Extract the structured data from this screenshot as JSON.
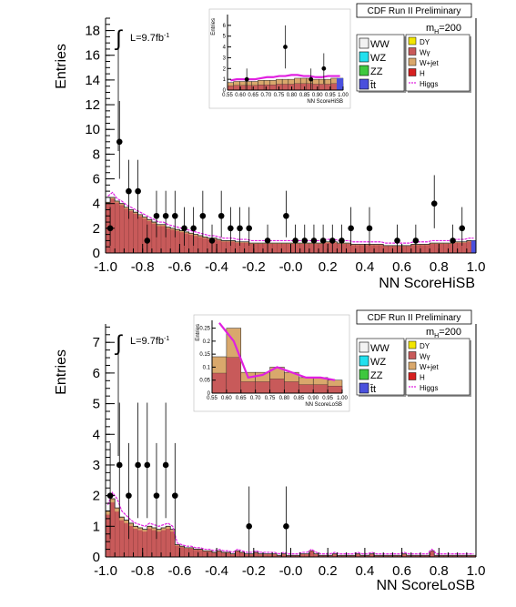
{
  "chart_data": [
    {
      "type": "bar",
      "id": "hisb",
      "banner": "CDF Run II Preliminary",
      "lumi_label": "L=9.7fb",
      "lumi_sup": "-1",
      "mass_label": "m",
      "mass_sub": "H",
      "mass_value": "=200",
      "xlabel": "NN ScoreHiSB",
      "ylabel": "Entries",
      "xlim": [
        -1.0,
        1.0
      ],
      "ylim": [
        0,
        19
      ],
      "xticks": [
        "-1.0",
        "-0.8",
        "-0.6",
        "-0.4",
        "-0.2",
        "-0.0",
        "0.2",
        "0.4",
        "0.6",
        "0.8",
        "1.0"
      ],
      "yticks": [
        "0",
        "2",
        "4",
        "6",
        "8",
        "10",
        "12",
        "14",
        "16",
        "18"
      ],
      "legend_left": [
        "WW",
        "WZ",
        "ZZ",
        "t̄t"
      ],
      "legend_right": [
        "DY",
        "Wγ",
        "W+jet",
        "H",
        "Higgs"
      ],
      "colors": {
        "ww": "#f2f2f2",
        "wz": "#22e0ee",
        "zz": "#3ec83e",
        "tt": "#4a50dd",
        "dy": "#f2e600",
        "wg": "#c85a5a",
        "wjet": "#d9a86c",
        "h": "#d62020",
        "higgs": "#e020e0"
      },
      "bkg_bins": [
        4.1,
        4.5,
        4.2,
        4.0,
        3.7,
        3.5,
        3.3,
        3.1,
        2.9,
        2.7,
        2.5,
        2.3,
        2.3,
        2.1,
        2.0,
        1.9,
        1.8,
        1.7,
        1.6,
        1.5,
        1.4,
        1.3,
        1.2,
        1.2,
        1.1,
        1.0,
        1.0,
        1.0,
        0.9,
        0.9,
        0.9,
        0.8,
        0.8,
        0.8,
        0.8,
        0.8,
        0.8,
        0.8,
        0.8,
        0.8,
        0.8,
        0.8,
        0.8,
        0.8,
        0.8,
        0.8,
        0.8,
        0.9,
        0.9,
        0.9,
        0.8,
        0.8,
        0.8,
        0.7,
        0.7,
        0.7,
        0.7,
        0.7,
        0.7,
        0.7,
        0.6,
        0.6,
        0.6,
        0.6,
        0.6,
        0.6,
        0.7,
        0.7,
        0.7,
        0.7,
        0.8,
        0.8,
        0.8,
        0.8,
        0.8,
        0.9,
        0.9,
        0.9,
        1.0,
        1.0
      ],
      "signal_curve": [
        4.6,
        4.9,
        4.4,
        4.2,
        3.9,
        3.7,
        3.5,
        3.3,
        3.1,
        2.9,
        2.7,
        2.5,
        2.5,
        2.3,
        2.2,
        2.1,
        2.0,
        1.9,
        1.8,
        1.7,
        1.6,
        1.5,
        1.4,
        1.4,
        1.3,
        1.2,
        1.2,
        1.2,
        1.1,
        1.1,
        1.1,
        1.0,
        1.0,
        1.0,
        1.0,
        1.0,
        1.0,
        1.0,
        1.0,
        1.0,
        1.0,
        1.0,
        1.0,
        1.0,
        1.0,
        1.0,
        1.0,
        1.1,
        1.1,
        1.1,
        1.0,
        1.0,
        1.0,
        0.9,
        0.9,
        0.9,
        0.9,
        0.9,
        0.9,
        0.9,
        0.8,
        0.8,
        0.8,
        0.8,
        0.8,
        0.8,
        0.9,
        0.9,
        0.9,
        0.9,
        1.0,
        1.0,
        1.0,
        1.0,
        1.0,
        1.1,
        1.1,
        1.1,
        1.2,
        1.2
      ],
      "data_points": [
        {
          "x": -0.975,
          "y": 2
        },
        {
          "x": -0.925,
          "y": 9
        },
        {
          "x": -0.875,
          "y": 5
        },
        {
          "x": -0.825,
          "y": 5
        },
        {
          "x": -0.775,
          "y": 1
        },
        {
          "x": -0.725,
          "y": 3
        },
        {
          "x": -0.675,
          "y": 3
        },
        {
          "x": -0.625,
          "y": 3
        },
        {
          "x": -0.575,
          "y": 2
        },
        {
          "x": -0.525,
          "y": 2
        },
        {
          "x": -0.475,
          "y": 3
        },
        {
          "x": -0.425,
          "y": 1
        },
        {
          "x": -0.375,
          "y": 3
        },
        {
          "x": -0.325,
          "y": 2
        },
        {
          "x": -0.275,
          "y": 2
        },
        {
          "x": -0.225,
          "y": 2
        },
        {
          "x": -0.125,
          "y": 1
        },
        {
          "x": -0.025,
          "y": 3
        },
        {
          "x": 0.025,
          "y": 1
        },
        {
          "x": 0.075,
          "y": 1
        },
        {
          "x": 0.125,
          "y": 1
        },
        {
          "x": 0.175,
          "y": 1
        },
        {
          "x": 0.225,
          "y": 1
        },
        {
          "x": 0.275,
          "y": 1
        },
        {
          "x": 0.325,
          "y": 2
        },
        {
          "x": 0.425,
          "y": 2
        },
        {
          "x": 0.575,
          "y": 1
        },
        {
          "x": 0.675,
          "y": 1
        },
        {
          "x": 0.775,
          "y": 4
        },
        {
          "x": 0.875,
          "y": 1
        },
        {
          "x": 0.925,
          "y": 2
        }
      ],
      "inset": {
        "ylabel": "Entries",
        "xlabel": "NN ScoreHiSB",
        "xlim": [
          0.55,
          1.0
        ],
        "ylim": [
          0,
          7
        ],
        "xticks": [
          "0.55",
          "0.60",
          "0.65",
          "0.70",
          "0.75",
          "0.80",
          "0.85",
          "0.90",
          "0.95",
          "1.00"
        ],
        "yticks": [
          "0",
          "1",
          "2",
          "3",
          "4",
          "5",
          "6"
        ],
        "bkg_bins": [
          0.7,
          0.8,
          0.8,
          0.8,
          0.8,
          0.9,
          0.9,
          0.9,
          1.0,
          1.0,
          1.0,
          1.1,
          1.1,
          1.1,
          1.0,
          1.0,
          1.0,
          1.1,
          1.1
        ],
        "signal_curve": [
          0.9,
          1.0,
          1.0,
          1.0,
          1.0,
          1.1,
          1.2,
          1.2,
          1.3,
          1.3,
          1.4,
          1.4,
          1.3,
          1.3,
          1.2,
          1.2,
          1.3,
          1.3,
          1.3
        ],
        "data_points": [
          {
            "x": 0.625,
            "y": 1
          },
          {
            "x": 0.775,
            "y": 4
          },
          {
            "x": 0.875,
            "y": 1
          },
          {
            "x": 0.925,
            "y": 2
          }
        ]
      }
    },
    {
      "type": "bar",
      "id": "losb",
      "banner": "CDF Run II Preliminary",
      "lumi_label": "L=9.7fb",
      "lumi_sup": "-1",
      "mass_label": "m",
      "mass_sub": "H",
      "mass_value": "=200",
      "xlabel": "NN ScoreLoSB",
      "ylabel": "Entries",
      "xlim": [
        -1.0,
        1.0
      ],
      "ylim": [
        0,
        7.6
      ],
      "xticks": [
        "-1.0",
        "-0.8",
        "-0.6",
        "-0.4",
        "-0.2",
        "-0.0",
        "0.2",
        "0.4",
        "0.6",
        "0.8",
        "1.0"
      ],
      "yticks": [
        "0",
        "1",
        "2",
        "3",
        "4",
        "5",
        "6",
        "7"
      ],
      "legend_left": [
        "WW",
        "WZ",
        "ZZ",
        "t̄t"
      ],
      "legend_right": [
        "DY",
        "Wγ",
        "W+jet",
        "H",
        "Higgs"
      ],
      "bkg_bins": [
        1.5,
        1.9,
        1.6,
        1.3,
        1.2,
        1.1,
        1.0,
        0.95,
        0.9,
        1.0,
        0.95,
        0.9,
        0.95,
        1.0,
        0.9,
        0.4,
        0.35,
        0.3,
        0.3,
        0.25,
        0.25,
        0.2,
        0.2,
        0.15,
        0.2,
        0.15,
        0.15,
        0.1,
        0.2,
        0.15,
        0.1,
        0.1,
        0.15,
        0.1,
        0.1,
        0.1,
        0.1,
        0.05,
        0.1,
        0.05,
        0.05,
        0.05,
        0.1,
        0.1,
        0.2,
        0.1,
        0.05,
        0.05,
        0.05,
        0.1,
        0.05,
        0.05,
        0.05,
        0.05,
        0.1,
        0.05,
        0.05,
        0.1,
        0.05,
        0.05,
        0.05,
        0.05,
        0.05,
        0.05,
        0.1,
        0.05,
        0.05,
        0.05,
        0.05,
        0.05,
        0.2,
        0.05,
        0.05,
        0.05,
        0.05,
        0.05,
        0.05,
        0.05,
        0.05,
        0.05
      ],
      "signal_curve": [
        1.7,
        2.1,
        1.9,
        1.5,
        1.35,
        1.2,
        1.1,
        1.05,
        1.0,
        1.1,
        1.05,
        1.0,
        1.05,
        1.1,
        1.0,
        0.45,
        0.4,
        0.35,
        0.35,
        0.3,
        0.3,
        0.25,
        0.25,
        0.2,
        0.25,
        0.2,
        0.2,
        0.15,
        0.25,
        0.2,
        0.15,
        0.15,
        0.2,
        0.15,
        0.15,
        0.15,
        0.15,
        0.1,
        0.15,
        0.1,
        0.1,
        0.1,
        0.15,
        0.15,
        0.25,
        0.15,
        0.1,
        0.1,
        0.1,
        0.15,
        0.1,
        0.1,
        0.1,
        0.1,
        0.15,
        0.1,
        0.1,
        0.15,
        0.1,
        0.1,
        0.1,
        0.1,
        0.1,
        0.1,
        0.15,
        0.1,
        0.1,
        0.1,
        0.1,
        0.1,
        0.25,
        0.1,
        0.1,
        0.1,
        0.1,
        0.1,
        0.1,
        0.1,
        0.1,
        0.1
      ],
      "data_points": [
        {
          "x": -0.975,
          "y": 2
        },
        {
          "x": -0.925,
          "y": 3
        },
        {
          "x": -0.875,
          "y": 2
        },
        {
          "x": -0.825,
          "y": 3
        },
        {
          "x": -0.775,
          "y": 3
        },
        {
          "x": -0.725,
          "y": 2
        },
        {
          "x": -0.675,
          "y": 3
        },
        {
          "x": -0.625,
          "y": 2
        },
        {
          "x": -0.225,
          "y": 1
        },
        {
          "x": -0.025,
          "y": 1
        }
      ],
      "inset": {
        "ylabel": "Entries",
        "xlabel": "NN ScoreLoSB",
        "xlim": [
          0.55,
          1.0
        ],
        "ylim": [
          0,
          0.28
        ],
        "xticks": [
          "0.55",
          "0.60",
          "0.65",
          "0.70",
          "0.75",
          "0.80",
          "0.85",
          "0.90",
          "0.95",
          "1.00"
        ],
        "yticks": [
          "0",
          "0.05",
          "0.1",
          "0.15",
          "0.2",
          "0.25"
        ],
        "bkg_bins": [
          0.14,
          0.25,
          0.08,
          0.08,
          0.1,
          0.08,
          0.06,
          0.06,
          0.05
        ],
        "signal_curve": [
          0.27,
          0.2,
          0.06,
          0.07,
          0.1,
          0.08,
          0.06,
          0.06,
          0.05
        ]
      }
    }
  ]
}
